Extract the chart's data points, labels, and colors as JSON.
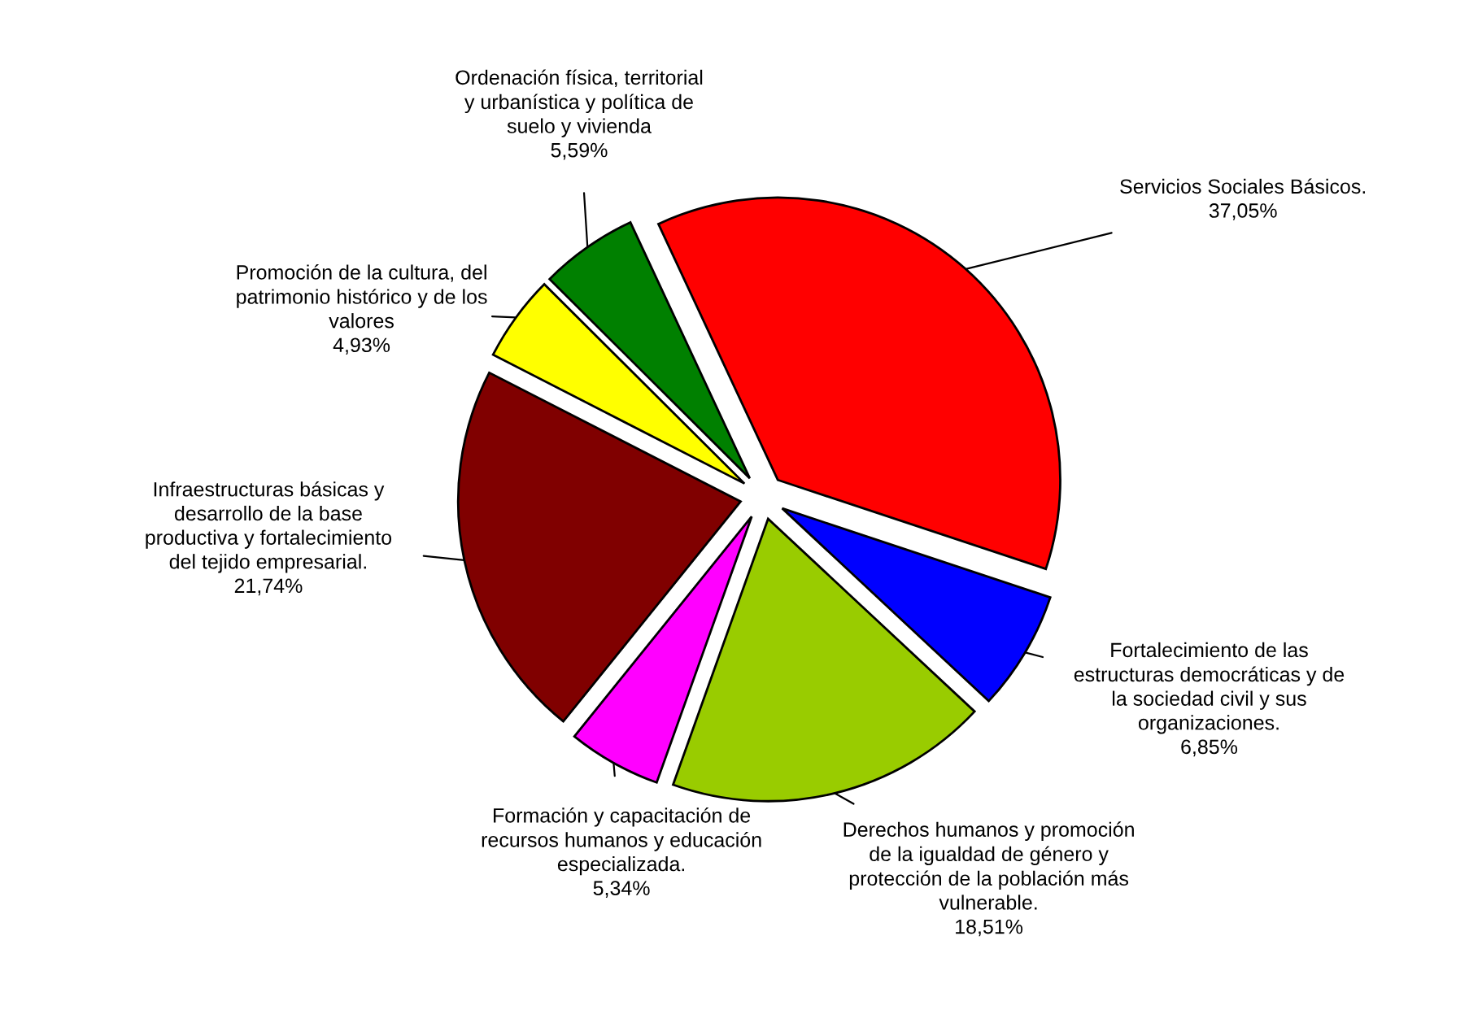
{
  "chart_data": {
    "type": "pie",
    "categories": [
      "Servicios Sociales Básicos.",
      "Fortalecimiento de las estructuras democráticas y de la sociedad civil y sus organizaciones.",
      "Derechos humanos y promoción de la igualdad de género y protección de la población más vulnerable.",
      "Formación y capacitación de recursos humanos y educación especializada.",
      "Infraestructuras básicas y desarrollo de la base productiva y fortalecimiento del tejido empresarial.",
      "Promoción de la cultura, del patrimonio histórico y de los valores",
      "Ordenación física, territorial y urbanística y política de suelo y vivienda"
    ],
    "values": [
      37.05,
      6.85,
      18.51,
      5.34,
      21.74,
      4.93,
      5.59
    ],
    "value_labels": [
      "37,05%",
      "6,85%",
      "18,51%",
      "5,34%",
      "21,74%",
      "4,93%",
      "5,59%"
    ],
    "colors": [
      "#ff0000",
      "#0000ff",
      "#99cc00",
      "#ff00ff",
      "#800000",
      "#ffff00",
      "#008000"
    ],
    "legend": false
  }
}
